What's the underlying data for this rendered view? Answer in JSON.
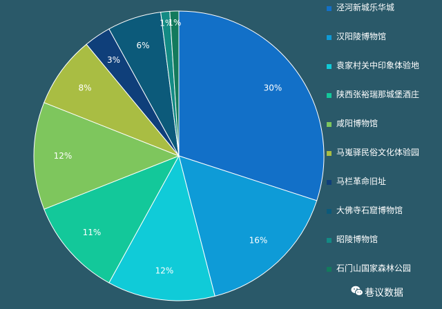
{
  "chart_data": {
    "type": "pie",
    "slices": [
      {
        "label": "泾河新城乐华城",
        "value": 30,
        "display": "30%",
        "color": "#1270c8"
      },
      {
        "label": "汉阳陵博物馆",
        "value": 16,
        "display": "16%",
        "color": "#0e9bd7"
      },
      {
        "label": "袁家村关中印象体验地",
        "value": 12,
        "display": "12%",
        "color": "#10cbd8"
      },
      {
        "label": "陕西张裕瑞那城堡酒庄",
        "value": 11,
        "display": "11%",
        "color": "#13c89a"
      },
      {
        "label": "咸阳博物馆",
        "value": 12,
        "display": "12%",
        "color": "#7ec65d"
      },
      {
        "label": "马嵬驿民俗文化体验园",
        "value": 8,
        "display": "8%",
        "color": "#a9bd43"
      },
      {
        "label": "马栏革命旧址",
        "value": 3,
        "display": "3%",
        "color": "#0f3f7a"
      },
      {
        "label": "大佛寺石窟博物馆",
        "value": 6,
        "display": "6%",
        "color": "#0c5a7a"
      },
      {
        "label": "昭陵博物馆",
        "value": 1,
        "display": "1%",
        "color": "#138a84"
      },
      {
        "label": "石门山国家森林公园",
        "value": 1,
        "display": "1%",
        "color": "#137a5c"
      }
    ]
  },
  "legend": {
    "items": [
      {
        "label": "泾河新城乐华城"
      },
      {
        "label": "汉阳陵博物馆"
      },
      {
        "label": "袁家村关中印象体验地"
      },
      {
        "label": "陕西张裕瑞那城堡酒庄"
      },
      {
        "label": "咸阳博物馆"
      },
      {
        "label": "马嵬驿民俗文化体验园"
      },
      {
        "label": "马栏革命旧址"
      },
      {
        "label": "大佛寺石窟博物馆"
      },
      {
        "label": "昭陵博物馆"
      },
      {
        "label": "石门山国家森林公园"
      }
    ]
  },
  "watermark": {
    "text": "巷议数据",
    "icon": "wechat-icon"
  }
}
